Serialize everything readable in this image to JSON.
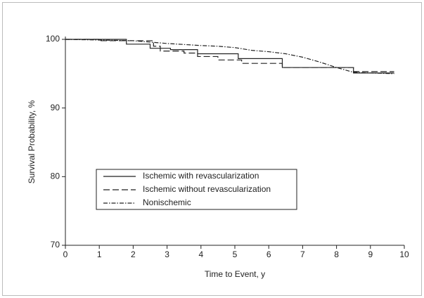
{
  "chart_data": {
    "type": "line",
    "step": true,
    "xlabel": "Time to Event, y",
    "ylabel": "Survival Probability, %",
    "xlim": [
      0,
      10
    ],
    "xticks": [
      0,
      1,
      2,
      3,
      4,
      5,
      6,
      7,
      8,
      9,
      10
    ],
    "ylim": [
      70,
      100
    ],
    "yticks": [
      70,
      80,
      90,
      100
    ],
    "legend": "lower left",
    "series": [
      {
        "name": "Ischemic with revascularization",
        "color": "#222222",
        "line_style": "solid",
        "x": [
          0,
          1.8,
          1.8,
          2.5,
          2.5,
          3.1,
          3.1,
          3.9,
          3.9,
          5.1,
          5.1,
          6.4,
          6.4,
          8.5,
          8.5,
          9.7
        ],
        "values": [
          100,
          100,
          99.3,
          99.3,
          98.7,
          98.7,
          98.5,
          98.5,
          97.9,
          97.9,
          97.2,
          97.2,
          95.9,
          95.9,
          95.1,
          95.1
        ]
      },
      {
        "name": "Ischemic without revascularization",
        "color": "#222222",
        "line_style": "dashed",
        "x": [
          0,
          1.0,
          1.0,
          2.6,
          2.6,
          2.8,
          2.8,
          3.5,
          3.5,
          3.9,
          3.9,
          4.5,
          4.5,
          5.2,
          5.2,
          6.4,
          6.4,
          8.5,
          8.5,
          9.7
        ],
        "values": [
          100,
          100,
          99.8,
          99.8,
          99.0,
          99.0,
          98.3,
          98.3,
          98.0,
          98.0,
          97.5,
          97.5,
          97.0,
          97.0,
          96.5,
          96.5,
          95.9,
          95.9,
          95.3,
          95.3
        ]
      },
      {
        "name": "Nonischemic",
        "color": "#222222",
        "line_style": "dashdot",
        "x": [
          0,
          1,
          2,
          3,
          4,
          4.5,
          5,
          5.5,
          6,
          6.5,
          7,
          7.5,
          8,
          8.5,
          9,
          9.7
        ],
        "values": [
          100,
          99.9,
          99.8,
          99.4,
          99.1,
          99.0,
          98.8,
          98.4,
          98.2,
          97.9,
          97.4,
          96.7,
          95.9,
          95.2,
          95.1,
          95.0
        ]
      }
    ]
  }
}
